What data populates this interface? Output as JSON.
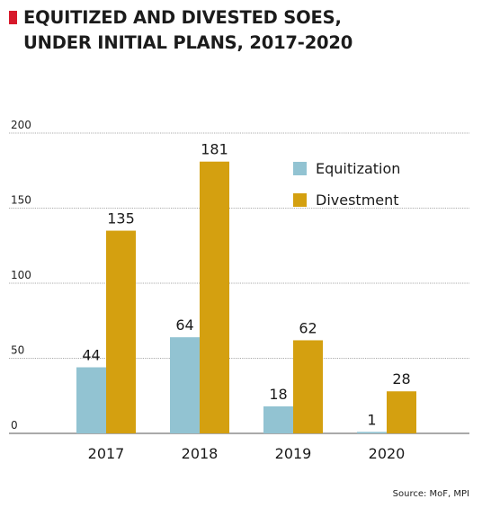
{
  "title_lines": [
    "EQUITIZED AND DIVESTED SOES,",
    "UNDER INITIAL PLANS, 2017-2020"
  ],
  "source": "Source: MoF, MPI",
  "colors": {
    "accent": "#d7192b",
    "equitization": "#92c3d2",
    "divestment": "#d4a010",
    "grid": "#555555"
  },
  "chart_data": {
    "type": "bar",
    "title": "EQUITIZED AND DIVESTED SOES, UNDER INITIAL PLANS, 2017-2020",
    "categories": [
      "2017",
      "2018",
      "2019",
      "2020"
    ],
    "series": [
      {
        "name": "Equitization",
        "values": [
          44,
          64,
          18,
          1
        ]
      },
      {
        "name": "Divestment",
        "values": [
          135,
          181,
          62,
          28
        ]
      }
    ],
    "yticks": [
      0,
      50,
      100,
      150,
      200
    ],
    "ylim": [
      0,
      200
    ],
    "grid": true,
    "legend_position": "top-right",
    "xlabel": "",
    "ylabel": ""
  }
}
